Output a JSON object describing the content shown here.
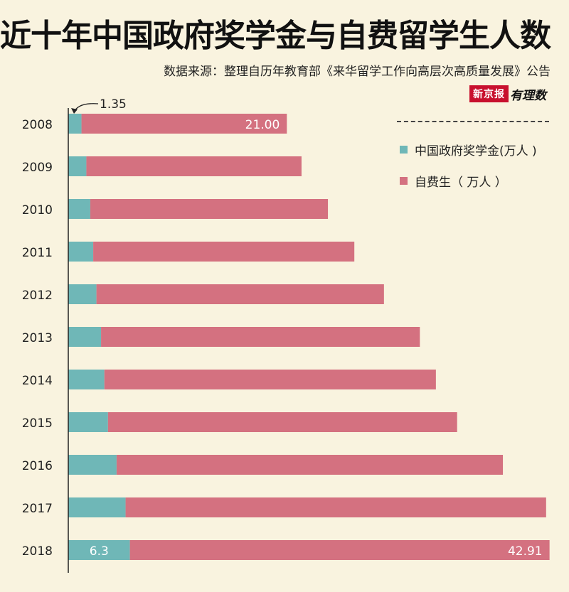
{
  "title": "近十年中国政府奖学金与自费留学生人数",
  "source": "数据来源：整理自历年教育部《来华留学工作向高层次高质量发展》公告",
  "logo": {
    "brand": "新京报",
    "sub": "有理数"
  },
  "colors": {
    "scholarship": "#6fb7b7",
    "self_funded": "#d47180",
    "background": "#f9f3df"
  },
  "chart_data": {
    "type": "bar",
    "orientation": "horizontal",
    "stacked": true,
    "categories": [
      "2008",
      "2009",
      "2010",
      "2011",
      "2012",
      "2013",
      "2014",
      "2015",
      "2016",
      "2017",
      "2018"
    ],
    "series": [
      {
        "name": "中国政府奖学金(万人 )",
        "values": [
          1.35,
          1.85,
          2.25,
          2.55,
          2.88,
          3.35,
          3.69,
          4.06,
          4.94,
          5.86,
          6.3
        ]
      },
      {
        "name": "自费生（ 万人 ）",
        "values": [
          21.0,
          22.0,
          24.3,
          26.7,
          29.4,
          32.6,
          33.9,
          35.7,
          39.5,
          43.0,
          42.91
        ]
      }
    ],
    "data_labels": [
      {
        "category": "2008",
        "series": 0,
        "text": "1.35"
      },
      {
        "category": "2008",
        "series": 1,
        "text": "21.00"
      },
      {
        "category": "2018",
        "series": 0,
        "text": "6.3"
      },
      {
        "category": "2018",
        "series": 1,
        "text": "42.91"
      }
    ],
    "xlim": [
      0,
      50
    ],
    "legend": "top-right"
  }
}
